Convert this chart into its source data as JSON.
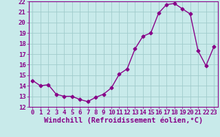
{
  "x": [
    0,
    1,
    2,
    3,
    4,
    5,
    6,
    7,
    8,
    9,
    10,
    11,
    12,
    13,
    14,
    15,
    16,
    17,
    18,
    19,
    20,
    21,
    22,
    23
  ],
  "y": [
    14.5,
    14.0,
    14.1,
    13.2,
    13.0,
    13.0,
    12.7,
    12.5,
    12.9,
    13.2,
    13.8,
    15.1,
    15.6,
    17.5,
    18.7,
    19.0,
    20.9,
    21.7,
    21.8,
    21.3,
    20.8,
    17.3,
    15.9,
    17.7
  ],
  "line_color": "#880088",
  "marker": "D",
  "marker_size": 2.5,
  "bg_color": "#c8eaea",
  "grid_color": "#a0cccc",
  "xlabel": "Windchill (Refroidissement éolien,°C)",
  "xlabel_fontsize": 7.5,
  "ylim": [
    12,
    22
  ],
  "xlim": [
    -0.5,
    23.5
  ],
  "yticks": [
    12,
    13,
    14,
    15,
    16,
    17,
    18,
    19,
    20,
    21,
    22
  ],
  "xticks": [
    0,
    1,
    2,
    3,
    4,
    5,
    6,
    7,
    8,
    9,
    10,
    11,
    12,
    13,
    14,
    15,
    16,
    17,
    18,
    19,
    20,
    21,
    22,
    23
  ],
  "tick_fontsize": 6.5,
  "linewidth": 1.0
}
